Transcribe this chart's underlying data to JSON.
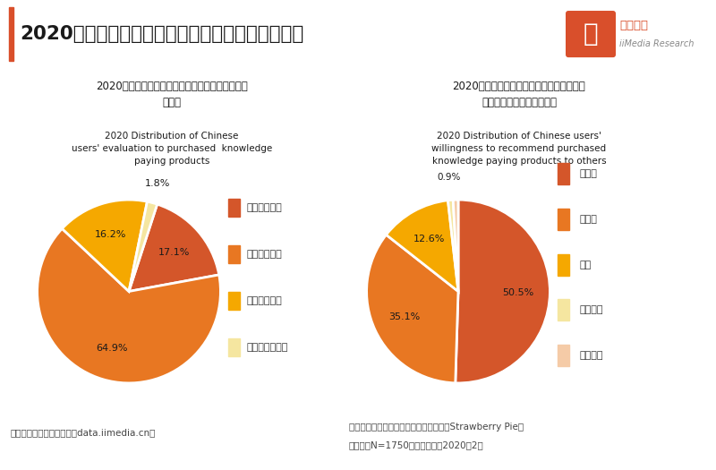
{
  "main_title": "2020年中国知识付费用户消费意向数据分析（一）",
  "bg_color": "#ffffff",
  "header_left_bar_color": "#d94f2b",
  "pie1_title_cn": "2020年中国用户对购买过的知识付费产品的评价分\n布情况",
  "pie1_title_en": "2020 Distribution of Chinese\nusers' evaluation to purchased  knowledge\npaying products",
  "pie1_values": [
    17.1,
    64.9,
    16.2,
    1.8
  ],
  "pie1_labels": [
    "17.1%",
    "64.9%",
    "16.2%",
    "1.8%"
  ],
  "pie1_legend_labels": [
    "完全符合期望",
    "比较符合期望",
    "还算符合期望",
    "不是很符合期望"
  ],
  "pie1_colors": [
    "#d4562a",
    "#e87722",
    "#f5a800",
    "#f5e6a0"
  ],
  "pie1_startangle": 72,
  "pie2_title_cn": "2020年中国用户将购买过的知识付费产品推\n荐给其他人的意愿分布情况",
  "pie2_title_en": "2020 Distribution of Chinese users'\nwillingness to recommend purchased\nknowledge paying products to others",
  "pie2_values": [
    50.5,
    35.1,
    12.6,
    0.9,
    0.9
  ],
  "pie2_labels_inside": [
    "50.5%",
    "35.1%",
    "12.6%",
    "",
    ""
  ],
  "pie2_label_outside": "0.9%",
  "pie2_legend_labels": [
    "可能会",
    "一定会",
    "一般",
    "可能不会",
    "一定不会"
  ],
  "pie2_colors": [
    "#d4562a",
    "#e87722",
    "#f5a800",
    "#f5e6a0",
    "#f5cba7"
  ],
  "pie2_startangle": 90,
  "footer_left": "数据来源：艾媒数据中心（data.iimedia.cn）",
  "footer_right1": "样本来源：草莓派数据调查与计算系统（Strawberry Pie）",
  "footer_right2": "样本量：N=1750；调研时间：2020年2月",
  "footer_bg": "#f2f2f2",
  "logo_text1": "艾媒咨询",
  "logo_text2": "iiMedia Research",
  "logo_icon": "艾"
}
